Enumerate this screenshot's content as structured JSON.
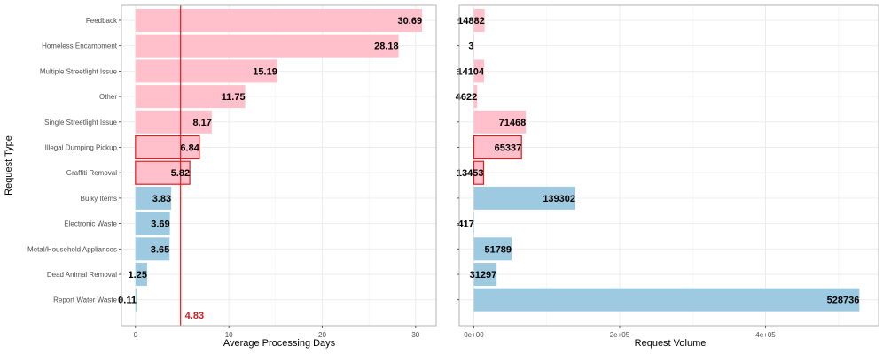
{
  "chart_data": [
    {
      "type": "bar",
      "orientation": "horizontal",
      "xlabel": "Average Processing Days",
      "ylabel": "Request Type",
      "xlim": [
        -1.5,
        32.2
      ],
      "xticks": [
        "0",
        "10",
        "20",
        "30"
      ],
      "categories": [
        "Feedback",
        "Homeless Encampment",
        "Multiple Streetlight Issue",
        "Other",
        "Single Streetlight Issue",
        "Illegal Dumping Pickup",
        "Graffiti Removal",
        "Bulky Items",
        "Electronic Waste",
        "Metal/Household Appliances",
        "Dead Animal Removal",
        "Report Water Waste"
      ],
      "values": [
        30.69,
        28.18,
        15.19,
        11.75,
        8.17,
        6.84,
        5.82,
        3.83,
        3.69,
        3.65,
        1.25,
        0.11
      ],
      "value_labels": [
        "30.69",
        "28.18",
        "15.19",
        "11.75",
        "8.17",
        "6.84",
        "5.82",
        "3.83",
        "3.69",
        "3.65",
        "1.25",
        "0.11"
      ],
      "groups": [
        "above",
        "above",
        "above",
        "above",
        "above",
        "above",
        "above",
        "below",
        "below",
        "below",
        "below",
        "below"
      ],
      "highlighted": [
        "Illegal Dumping Pickup",
        "Graffiti Removal"
      ],
      "reference_line": {
        "value": 4.83,
        "label": "4.83"
      },
      "colors": {
        "above": "#ffc0cb",
        "below": "#9ecae1",
        "highlight_border": "#e31a1c",
        "reference": "#e41a1c"
      },
      "grid": true
    },
    {
      "type": "bar",
      "orientation": "horizontal",
      "xlabel": "Request Volume",
      "ylabel": "",
      "xlim": [
        -20000,
        555000
      ],
      "xticks": [
        "0e+00",
        "2e+05",
        "4e+05"
      ],
      "categories": [
        "Feedback",
        "Homeless Encampment",
        "Multiple Streetlight Issue",
        "Other",
        "Single Streetlight Issue",
        "Illegal Dumping Pickup",
        "Graffiti Removal",
        "Bulky Items",
        "Electronic Waste",
        "Metal/Household Appliances",
        "Dead Animal Removal",
        "Report Water Waste"
      ],
      "values": [
        14882,
        3,
        14104,
        4622,
        71468,
        65337,
        13453,
        139302,
        417,
        51789,
        31297,
        528736
      ],
      "value_labels": [
        "14882",
        "3",
        "14104",
        "4622",
        "71468",
        "65337",
        "13453",
        "139302",
        "417",
        "51789",
        "31297",
        "528736"
      ],
      "groups": [
        "above",
        "above",
        "above",
        "above",
        "above",
        "above",
        "above",
        "below",
        "below",
        "below",
        "below",
        "below"
      ],
      "highlighted": [
        "Illegal Dumping Pickup",
        "Graffiti Removal"
      ],
      "colors": {
        "above": "#ffc0cb",
        "below": "#9ecae1",
        "highlight_border": "#e31a1c"
      },
      "grid": true
    }
  ]
}
